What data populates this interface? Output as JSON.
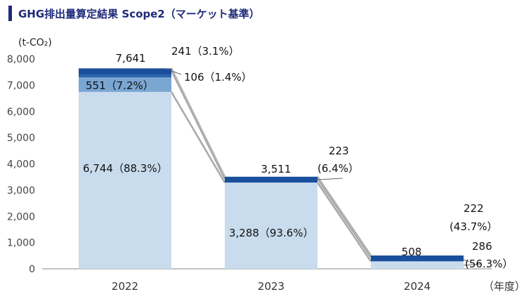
{
  "header": {
    "title": "GHG排出量算定結果 Scope2（マーケット基準）",
    "unit": "(t-CO₂)",
    "x_unit": "（年度）"
  },
  "chart_data": {
    "type": "bar",
    "stacked": true,
    "title": "GHG排出量算定結果 Scope2（マーケット基準）",
    "ylabel": "(t-CO₂)",
    "xlabel": "（年度）",
    "ylim": [
      0,
      8000
    ],
    "yticks": [
      0,
      1000,
      2000,
      3000,
      4000,
      5000,
      6000,
      7000,
      8000
    ],
    "ytick_labels": [
      "0",
      "1,000",
      "2,000",
      "3,000",
      "4,000",
      "5,000",
      "6,000",
      "7,000",
      "8,000"
    ],
    "categories": [
      "2022",
      "2023",
      "2024"
    ],
    "series": [
      {
        "values": [
          6744,
          3288,
          286
        ],
        "color": "#c9dcee"
      },
      {
        "values": [
          551,
          0,
          0
        ],
        "color": "#7aa6d2"
      },
      {
        "values": [
          106,
          0,
          0
        ],
        "color": "#2a62ad"
      },
      {
        "values": [
          241,
          223,
          222
        ],
        "color": "#1a4f9c"
      }
    ],
    "totals": [
      7641,
      3511,
      508
    ],
    "total_labels": [
      "7,641",
      "3,511",
      "508"
    ],
    "annotations": [
      {
        "text": "6,744（88.3%）"
      },
      {
        "text": "551（7.2%）"
      },
      {
        "text": "106（1.4%）"
      },
      {
        "text": "241（3.1%）"
      },
      {
        "text": "3,288（93.6%）"
      },
      {
        "text": "223"
      },
      {
        "text": "(6.4%）"
      },
      {
        "text": "222"
      },
      {
        "text": "(43.7%）"
      },
      {
        "text": "286"
      },
      {
        "text": "(56.3%）"
      }
    ],
    "grid": false,
    "legend": "none"
  }
}
